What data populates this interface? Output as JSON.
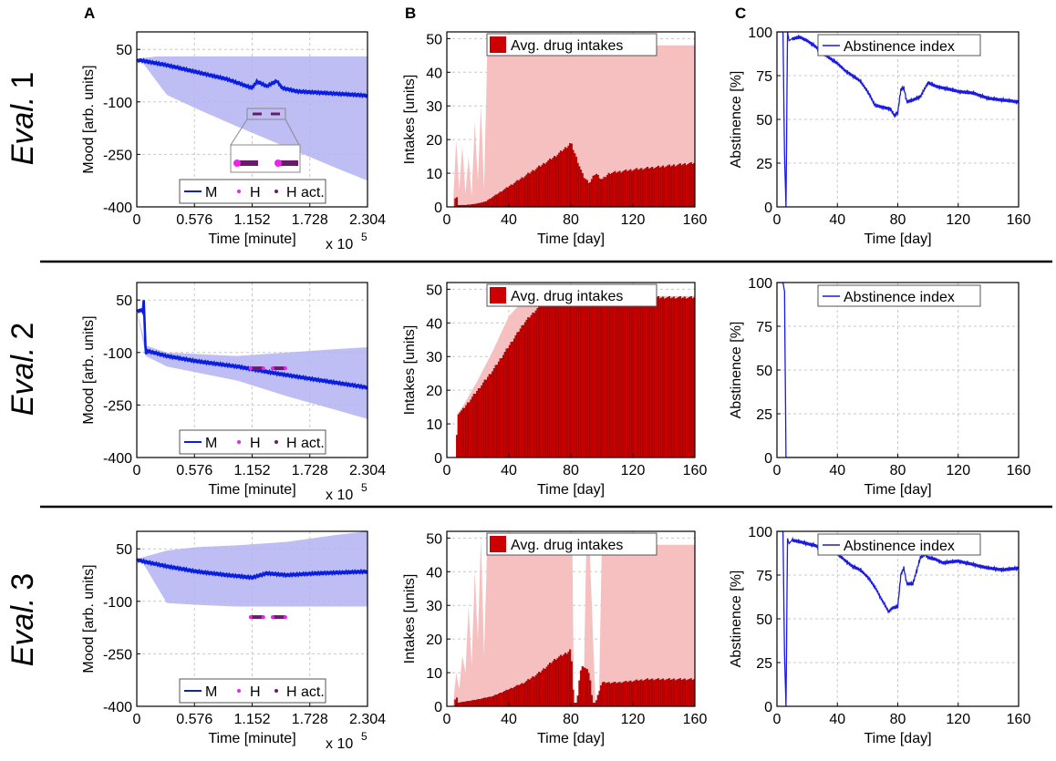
{
  "panel_letters": [
    "A",
    "B",
    "C"
  ],
  "rows": [
    {
      "label": "Eval.",
      "number": "1"
    },
    {
      "label": "Eval.",
      "number": "2"
    },
    {
      "label": "Eval.",
      "number": "3"
    }
  ],
  "colors": {
    "mood_line": "#0a1ee0",
    "mood_band": "#b3b3f2",
    "intake_bar": "#cc0000",
    "intake_range": "#f7c0c0",
    "abstinence_line": "#1a1ae0",
    "highlight": "#ee22ee",
    "highlight_active": "#6a1a6a"
  },
  "chart_data": [
    {
      "type": "line",
      "row": 1,
      "panel": "A",
      "xlabel": "Time [minute]",
      "ylabel": "Mood [arb. units]",
      "xlim": [
        0,
        2.304
      ],
      "ylim": [
        -400,
        100
      ],
      "x_multiplier_label": "x 10",
      "x_multiplier_exp": "5",
      "xticks": [
        "0",
        "0.576",
        "1.152",
        "1.728",
        "2.304"
      ],
      "yticks": [
        "50",
        "-100",
        "-250",
        "-400"
      ],
      "ytick_values": [
        50,
        -100,
        -250,
        -400
      ],
      "legend": [
        "M",
        "H",
        "H act."
      ],
      "series": [
        {
          "name": "M",
          "x": [
            0,
            0.05,
            0.3,
            0.6,
            0.9,
            1.15,
            1.2,
            1.3,
            1.4,
            1.45,
            1.6,
            1.9,
            2.304
          ],
          "values": [
            20,
            18,
            5,
            -15,
            -35,
            -60,
            -42,
            -55,
            -40,
            -60,
            -70,
            -75,
            -82
          ]
        },
        {
          "name": "range_upper",
          "x": [
            0,
            0.05,
            0.2,
            0.6,
            1.0,
            1.5,
            2.0,
            2.304
          ],
          "values": [
            20,
            25,
            30,
            30,
            30,
            30,
            30,
            30
          ]
        },
        {
          "name": "range_lower",
          "x": [
            0,
            0.05,
            0.3,
            0.6,
            1.0,
            1.5,
            2.0,
            2.304
          ],
          "values": [
            20,
            15,
            -80,
            -120,
            -170,
            -230,
            -290,
            -325
          ]
        }
      ],
      "h_markers": [
        1.2,
        1.42
      ],
      "inset": true
    },
    {
      "type": "line",
      "row": 2,
      "panel": "A",
      "xlabel": "Time [minute]",
      "ylabel": "Mood [arb. units]",
      "xlim": [
        0,
        2.304
      ],
      "ylim": [
        -400,
        100
      ],
      "x_multiplier_label": "x 10",
      "x_multiplier_exp": "5",
      "xticks": [
        "0",
        "0.576",
        "1.152",
        "1.728",
        "2.304"
      ],
      "yticks": [
        "50",
        "-100",
        "-250",
        "-400"
      ],
      "ytick_values": [
        50,
        -100,
        -250,
        -400
      ],
      "legend": [
        "M",
        "H",
        "H act."
      ],
      "series": [
        {
          "name": "M",
          "x": [
            0,
            0.06,
            0.07,
            0.09,
            0.1,
            0.3,
            0.6,
            1.0,
            1.4,
            1.8,
            2.304
          ],
          "values": [
            20,
            20,
            50,
            -110,
            -95,
            -110,
            -125,
            -140,
            -160,
            -178,
            -200
          ]
        },
        {
          "name": "range_upper",
          "x": [
            0,
            0.09,
            0.3,
            1.0,
            1.5,
            2.0,
            2.304
          ],
          "values": [
            20,
            -80,
            -100,
            -110,
            -100,
            -90,
            -85
          ]
        },
        {
          "name": "range_lower",
          "x": [
            0,
            0.09,
            0.3,
            1.0,
            1.5,
            2.0,
            2.304
          ],
          "values": [
            20,
            -110,
            -140,
            -180,
            -225,
            -265,
            -290
          ]
        }
      ],
      "h_markers": [
        1.2,
        1.42
      ],
      "inset": false
    },
    {
      "type": "line",
      "row": 3,
      "panel": "A",
      "xlabel": "Time [minute]",
      "ylabel": "Mood [arb. units]",
      "xlim": [
        0,
        2.304
      ],
      "ylim": [
        -400,
        100
      ],
      "x_multiplier_label": "x 10",
      "x_multiplier_exp": "5",
      "xticks": [
        "0",
        "0.576",
        "1.152",
        "1.728",
        "2.304"
      ],
      "yticks": [
        "50",
        "-100",
        "-250",
        "-400"
      ],
      "ytick_values": [
        50,
        -100,
        -250,
        -400
      ],
      "legend": [
        "M",
        "H",
        "H act."
      ],
      "series": [
        {
          "name": "M",
          "x": [
            0,
            0.05,
            0.3,
            0.6,
            0.9,
            1.15,
            1.3,
            1.5,
            1.8,
            2.304
          ],
          "values": [
            20,
            15,
            0,
            -15,
            -25,
            -32,
            -20,
            -25,
            -20,
            -15
          ]
        },
        {
          "name": "range_upper",
          "x": [
            0,
            0.05,
            0.3,
            0.6,
            1.0,
            1.5,
            2.0,
            2.304
          ],
          "values": [
            20,
            25,
            45,
            55,
            60,
            70,
            90,
            100
          ]
        },
        {
          "name": "range_lower",
          "x": [
            0,
            0.05,
            0.3,
            0.6,
            1.0,
            1.5,
            2.0,
            2.304
          ],
          "values": [
            20,
            15,
            -105,
            -110,
            -115,
            -115,
            -115,
            -115
          ]
        }
      ],
      "h_markers": [
        1.2,
        1.42
      ],
      "inset": false
    },
    {
      "type": "bar",
      "row": 1,
      "panel": "B",
      "xlabel": "Time [day]",
      "ylabel": "Intakes [units]",
      "xlim": [
        0,
        160
      ],
      "ylim": [
        0,
        52
      ],
      "xticks": [
        "0",
        "40",
        "80",
        "120",
        "160"
      ],
      "xtick_values": [
        0,
        40,
        80,
        120,
        160
      ],
      "yticks": [
        "0",
        "10",
        "20",
        "30",
        "40",
        "50"
      ],
      "ytick_values": [
        0,
        10,
        20,
        30,
        40,
        50
      ],
      "legend": "Avg. drug intakes",
      "bar_curve": {
        "x": [
          0,
          5,
          6,
          7,
          12,
          18,
          25,
          30,
          40,
          50,
          60,
          70,
          78,
          80,
          84,
          88,
          92,
          96,
          100,
          105,
          120,
          140,
          160
        ],
        "values": [
          0,
          0,
          5,
          0.5,
          0.5,
          0.8,
          1.5,
          3,
          6,
          9,
          12,
          15,
          18,
          19,
          14,
          9,
          7,
          10,
          8,
          10,
          11,
          12,
          13
        ]
      },
      "range_upper": {
        "x": [
          0,
          4,
          6,
          8,
          10,
          12,
          14,
          16,
          18,
          20,
          22,
          24,
          26,
          28,
          30,
          40,
          80,
          160
        ],
        "values": [
          0,
          0,
          20,
          5,
          18,
          4,
          15,
          3,
          25,
          8,
          30,
          5,
          45,
          48,
          48,
          48,
          48,
          48
        ]
      }
    },
    {
      "type": "bar",
      "row": 2,
      "panel": "B",
      "xlabel": "Time [day]",
      "ylabel": "Intakes [units]",
      "xlim": [
        0,
        160
      ],
      "ylim": [
        0,
        52
      ],
      "xticks": [
        "0",
        "40",
        "80",
        "120",
        "160"
      ],
      "xtick_values": [
        0,
        40,
        80,
        120,
        160
      ],
      "yticks": [
        "0",
        "10",
        "20",
        "30",
        "40",
        "50"
      ],
      "ytick_values": [
        0,
        10,
        20,
        30,
        40,
        50
      ],
      "legend": "Avg. drug intakes",
      "bar_curve": {
        "x": [
          0,
          6,
          7,
          10,
          20,
          30,
          40,
          50,
          60,
          70,
          80,
          100,
          120,
          160
        ],
        "values": [
          0,
          0,
          13,
          14,
          20,
          26,
          33,
          40,
          45,
          47,
          47.5,
          47.5,
          47.5,
          47.5
        ]
      },
      "range_upper": {
        "x": [
          0,
          6,
          7,
          10,
          20,
          30,
          40,
          50,
          60,
          160
        ],
        "values": [
          0,
          0,
          13,
          15,
          23,
          32,
          42,
          47,
          48,
          48
        ]
      }
    },
    {
      "type": "bar",
      "row": 3,
      "panel": "B",
      "xlabel": "Time [day]",
      "ylabel": "Intakes [units]",
      "xlim": [
        0,
        160
      ],
      "ylim": [
        0,
        52
      ],
      "xticks": [
        "0",
        "40",
        "80",
        "120",
        "160"
      ],
      "xtick_values": [
        0,
        40,
        80,
        120,
        160
      ],
      "yticks": [
        "0",
        "10",
        "20",
        "30",
        "40",
        "50"
      ],
      "ytick_values": [
        0,
        10,
        20,
        30,
        40,
        50
      ],
      "legend": "Avg. drug intakes",
      "bar_curve": {
        "x": [
          0,
          5,
          6,
          7,
          20,
          30,
          40,
          50,
          60,
          70,
          78,
          80,
          82,
          84,
          86,
          88,
          92,
          94,
          96,
          100,
          110,
          130,
          160
        ],
        "values": [
          0,
          0,
          4,
          1,
          2,
          3,
          5,
          7,
          10,
          14,
          16,
          17,
          1,
          1,
          10,
          12,
          10,
          1,
          1,
          7,
          7,
          8,
          8
        ]
      },
      "range_upper": {
        "x": [
          0,
          4,
          6,
          8,
          10,
          12,
          14,
          16,
          18,
          20,
          22,
          24,
          26,
          28,
          30,
          80,
          81,
          82,
          88,
          90,
          92,
          96,
          98,
          100,
          102,
          160
        ],
        "values": [
          0,
          0,
          10,
          5,
          15,
          10,
          30,
          12,
          40,
          20,
          50,
          15,
          48,
          48,
          48,
          48,
          48,
          0,
          0,
          48,
          48,
          0,
          0,
          48,
          48,
          48
        ]
      }
    },
    {
      "type": "line",
      "row": 1,
      "panel": "C",
      "xlabel": "Time [day]",
      "ylabel": "Abstinence [%]",
      "xlim": [
        0,
        160
      ],
      "ylim": [
        0,
        100
      ],
      "xticks": [
        "0",
        "40",
        "80",
        "120",
        "160"
      ],
      "xtick_values": [
        0,
        40,
        80,
        120,
        160
      ],
      "yticks": [
        "0",
        "25",
        "50",
        "75",
        "100"
      ],
      "ytick_values": [
        0,
        25,
        50,
        75,
        100
      ],
      "legend": "Abstinence index",
      "series": [
        {
          "name": "Abstinence index",
          "x": [
            0,
            4,
            5,
            6,
            7,
            8,
            10,
            15,
            20,
            25,
            30,
            35,
            40,
            45,
            50,
            55,
            60,
            65,
            70,
            75,
            78,
            80,
            82,
            84,
            86,
            90,
            95,
            100,
            105,
            110,
            120,
            130,
            140,
            150,
            160
          ],
          "values": [
            100,
            100,
            30,
            0,
            100,
            95,
            96,
            97,
            95,
            92,
            88,
            85,
            82,
            78,
            75,
            72,
            66,
            58,
            57,
            56,
            52,
            54,
            67,
            68,
            60,
            61,
            63,
            71,
            69,
            68,
            66,
            65,
            62,
            61,
            60
          ]
        }
      ]
    },
    {
      "type": "line",
      "row": 2,
      "panel": "C",
      "xlabel": "Time [day]",
      "ylabel": "Abstinence [%]",
      "xlim": [
        0,
        160
      ],
      "ylim": [
        0,
        100
      ],
      "xticks": [
        "0",
        "40",
        "80",
        "120",
        "160"
      ],
      "xtick_values": [
        0,
        40,
        80,
        120,
        160
      ],
      "yticks": [
        "0",
        "25",
        "50",
        "75",
        "100"
      ],
      "ytick_values": [
        0,
        25,
        50,
        75,
        100
      ],
      "legend": "Abstinence index",
      "series": [
        {
          "name": "Abstinence index",
          "x": [
            0,
            4,
            5,
            6,
            20,
            60,
            100,
            160
          ],
          "values": [
            100,
            100,
            95,
            0,
            0,
            0,
            0,
            0
          ]
        }
      ]
    },
    {
      "type": "line",
      "row": 3,
      "panel": "C",
      "xlabel": "Time [day]",
      "ylabel": "Abstinence [%]",
      "xlim": [
        0,
        160
      ],
      "ylim": [
        0,
        100
      ],
      "xticks": [
        "0",
        "40",
        "80",
        "120",
        "160"
      ],
      "xtick_values": [
        0,
        40,
        80,
        120,
        160
      ],
      "yticks": [
        "0",
        "25",
        "50",
        "75",
        "100"
      ],
      "ytick_values": [
        0,
        25,
        50,
        75,
        100
      ],
      "legend": "Abstinence index",
      "series": [
        {
          "name": "Abstinence index",
          "x": [
            0,
            4,
            5,
            6,
            7,
            8,
            10,
            15,
            20,
            25,
            30,
            40,
            50,
            55,
            60,
            65,
            70,
            74,
            76,
            80,
            82,
            84,
            86,
            90,
            95,
            98,
            100,
            105,
            110,
            120,
            130,
            140,
            150,
            160
          ],
          "values": [
            100,
            100,
            30,
            0,
            96,
            93,
            95,
            94,
            93,
            92,
            90,
            87,
            80,
            78,
            74,
            68,
            60,
            54,
            56,
            57,
            75,
            79,
            70,
            70,
            85,
            87,
            85,
            84,
            82,
            83,
            81,
            79,
            78,
            79
          ]
        }
      ]
    }
  ]
}
